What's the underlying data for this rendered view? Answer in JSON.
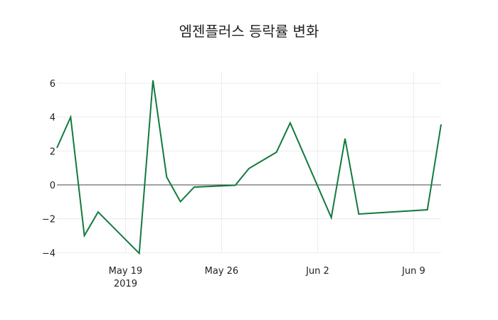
{
  "title": "엠젠플러스 등락률 변화",
  "colors": {
    "line": "#127a3e",
    "grid": "#ebebeb",
    "zeroline": "#444444",
    "background": "#ffffff"
  },
  "chart_data": {
    "type": "line",
    "title": "엠젠플러스 등락률 변화",
    "xlabel": "",
    "ylabel": "",
    "x": [
      "2019-05-14",
      "2019-05-15",
      "2019-05-16",
      "2019-05-17",
      "2019-05-20",
      "2019-05-21",
      "2019-05-22",
      "2019-05-23",
      "2019-05-24",
      "2019-05-27",
      "2019-05-28",
      "2019-05-30",
      "2019-05-31",
      "2019-06-03",
      "2019-06-04",
      "2019-06-05",
      "2019-06-10",
      "2019-06-11"
    ],
    "series": [
      {
        "name": "등락률",
        "values": [
          2.18,
          4.0,
          -2.99,
          -1.6,
          -4.04,
          6.17,
          0.46,
          -0.99,
          -0.13,
          -0.02,
          0.97,
          1.93,
          3.66,
          -1.93,
          2.73,
          -1.72,
          -1.47,
          3.57
        ]
      }
    ],
    "xticks": [
      {
        "date": "2019-05-19",
        "label": "May 19",
        "sublabel": "2019"
      },
      {
        "date": "2019-05-26",
        "label": "May 26",
        "sublabel": ""
      },
      {
        "date": "2019-06-02",
        "label": "Jun 2",
        "sublabel": ""
      },
      {
        "date": "2019-06-09",
        "label": "Jun 9",
        "sublabel": ""
      }
    ],
    "yticks": [
      6,
      4,
      2,
      0,
      -2,
      -4
    ],
    "ytick_labels": [
      "6",
      "4",
      "2",
      "0",
      "−2",
      "−4"
    ],
    "xlim": [
      "2019-05-14",
      "2019-06-11"
    ],
    "ylim": [
      -4.5,
      6.7
    ],
    "grid": true,
    "legend": false
  }
}
